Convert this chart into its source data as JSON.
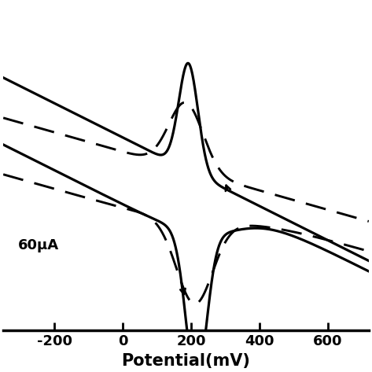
{
  "xlabel": "Potential(mV)",
  "ylabel": "60μA",
  "xlim": [
    -350,
    720
  ],
  "ylim": [
    -1.15,
    1.05
  ],
  "xticks": [
    -200,
    0,
    200,
    400,
    600
  ],
  "background_color": "#ffffff",
  "linewidth_solid": 2.3,
  "linewidth_dashed": 2.1,
  "xlabel_fontsize": 15,
  "tick_fontsize": 13,
  "ylabel_fontsize": 13
}
